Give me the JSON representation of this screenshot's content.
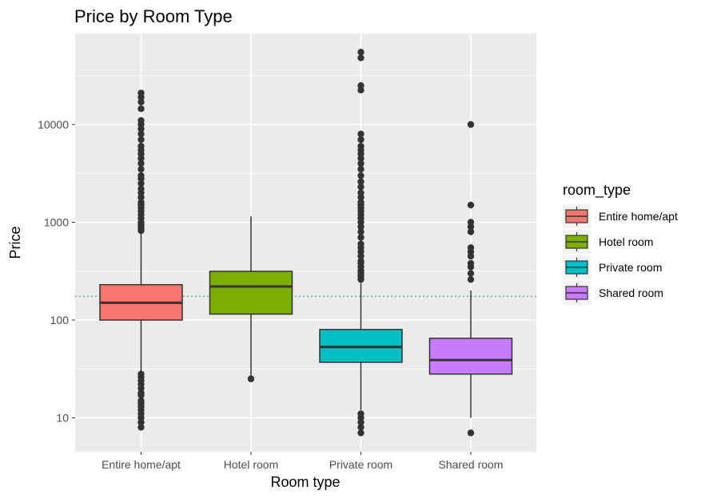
{
  "chart_data": {
    "type": "boxplot",
    "title": "Price by Room Type",
    "xlabel": "Room type",
    "ylabel": "Price",
    "y_scale": "log10",
    "ylim": [
      5,
      75000
    ],
    "yticks": [
      10,
      100,
      1000,
      10000
    ],
    "ytick_labels": [
      "10",
      "100",
      "1000",
      "10000"
    ],
    "grid": true,
    "reference_line": {
      "y": 175,
      "style": "dotted",
      "color": "#5f9ea0"
    },
    "categories": [
      "Entire home/apt",
      "Hotel room",
      "Private room",
      "Shared room"
    ],
    "legend": {
      "title": "room_type",
      "placement": "right"
    },
    "series": [
      {
        "name": "Entire home/apt",
        "color": "#F8766D",
        "whisker_low": 10,
        "q1": 100,
        "median": 150,
        "q3": 230,
        "whisker_high": 800,
        "outliers": [
          8,
          9,
          10,
          11,
          12,
          13,
          14,
          15,
          17,
          18,
          20,
          22,
          24,
          26,
          28,
          820,
          850,
          900,
          950,
          1000,
          1100,
          1200,
          1300,
          1400,
          1500,
          1600,
          1800,
          2000,
          2200,
          2500,
          2800,
          3000,
          3500,
          4000,
          4500,
          5000,
          5500,
          6000,
          7000,
          8000,
          9000,
          10000,
          11000,
          14500,
          17000,
          19000,
          21000
        ]
      },
      {
        "name": "Hotel room",
        "color": "#7CAE00",
        "whisker_low": 25,
        "q1": 115,
        "median": 220,
        "q3": 315,
        "whisker_high": 1150,
        "outliers": [
          25
        ]
      },
      {
        "name": "Private room",
        "color": "#00BFC4",
        "whisker_low": 12,
        "q1": 37,
        "median": 53,
        "q3": 80,
        "whisker_high": 240,
        "outliers": [
          7,
          8,
          9,
          10,
          11,
          260,
          280,
          300,
          320,
          350,
          380,
          400,
          450,
          500,
          550,
          600,
          700,
          800,
          900,
          1000,
          1100,
          1200,
          1300,
          1400,
          1500,
          1600,
          1800,
          2000,
          2300,
          2600,
          3000,
          3500,
          4000,
          4500,
          5000,
          5500,
          6000,
          7000,
          8000,
          22500,
          25000,
          48000,
          55000
        ]
      },
      {
        "name": "Shared room",
        "color": "#C77CFF",
        "whisker_low": 10,
        "q1": 28,
        "median": 39,
        "q3": 65,
        "whisker_high": 200,
        "outliers": [
          7,
          260,
          300,
          350,
          380,
          450,
          500,
          550,
          800,
          900,
          1000,
          1500,
          10000
        ]
      }
    ]
  }
}
